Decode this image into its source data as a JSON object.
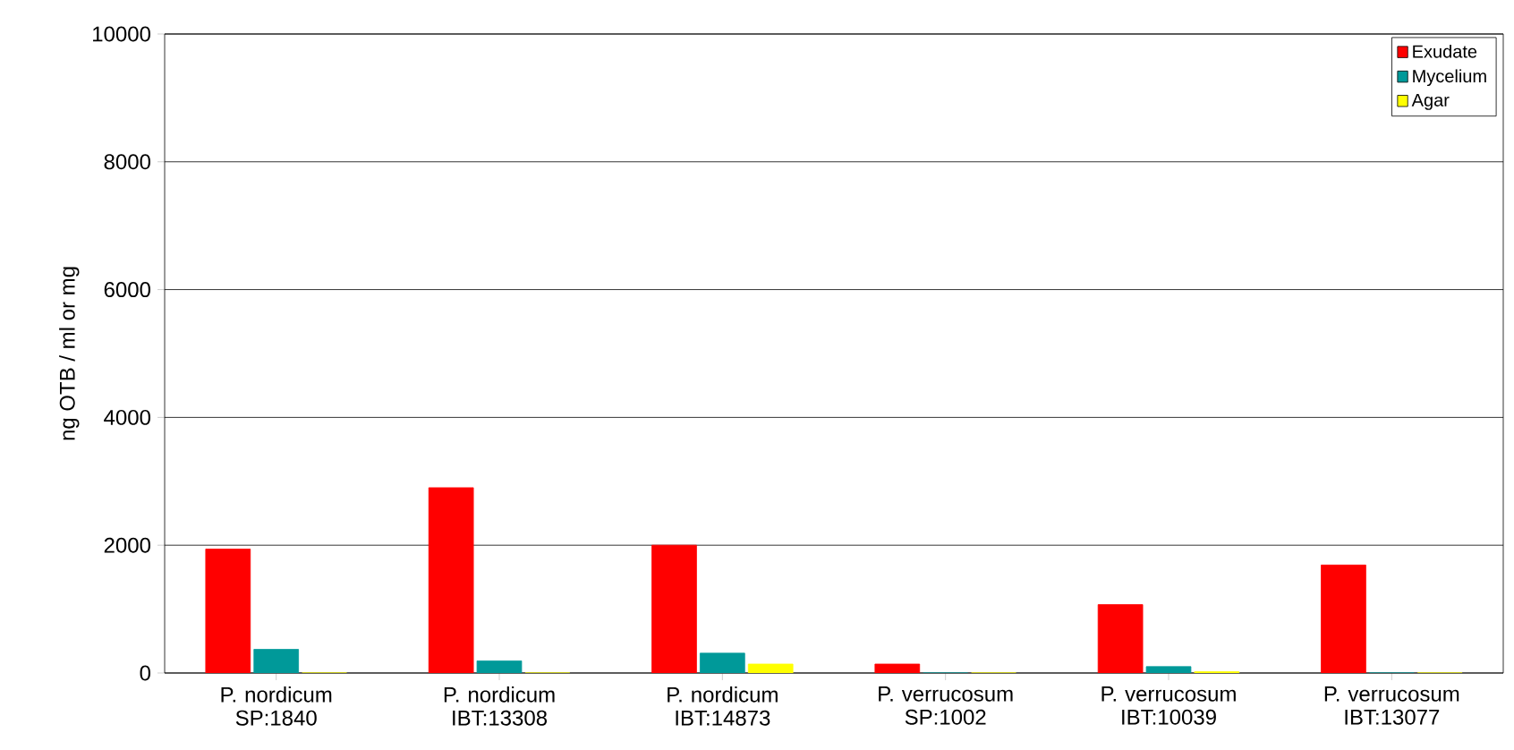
{
  "chart_data": {
    "type": "bar",
    "ylabel": "ng OTB / ml or mg",
    "categories": [
      "P. nordicum SP:1840",
      "P. nordicum IBT:13308",
      "P. nordicum IBT:14873",
      "P. verrucosum SP:1002",
      "P. verrucosum IBT:10039",
      "P. verrucosum IBT:13077"
    ],
    "series": [
      {
        "name": "Exudate",
        "color": "#ff0000",
        "values": [
          1940,
          2900,
          2000,
          140,
          1070,
          1690
        ]
      },
      {
        "name": "Mycelium",
        "color": "#009999",
        "values": [
          370,
          190,
          310,
          0,
          100,
          0
        ]
      },
      {
        "name": "Agar",
        "color": "#ffff00",
        "values": [
          0,
          0,
          140,
          0,
          20,
          0
        ]
      }
    ],
    "ylim": [
      0,
      10000
    ],
    "yticks": [
      0,
      2000,
      4000,
      6000,
      8000,
      10000
    ],
    "grid": "y",
    "legend": "top right"
  }
}
